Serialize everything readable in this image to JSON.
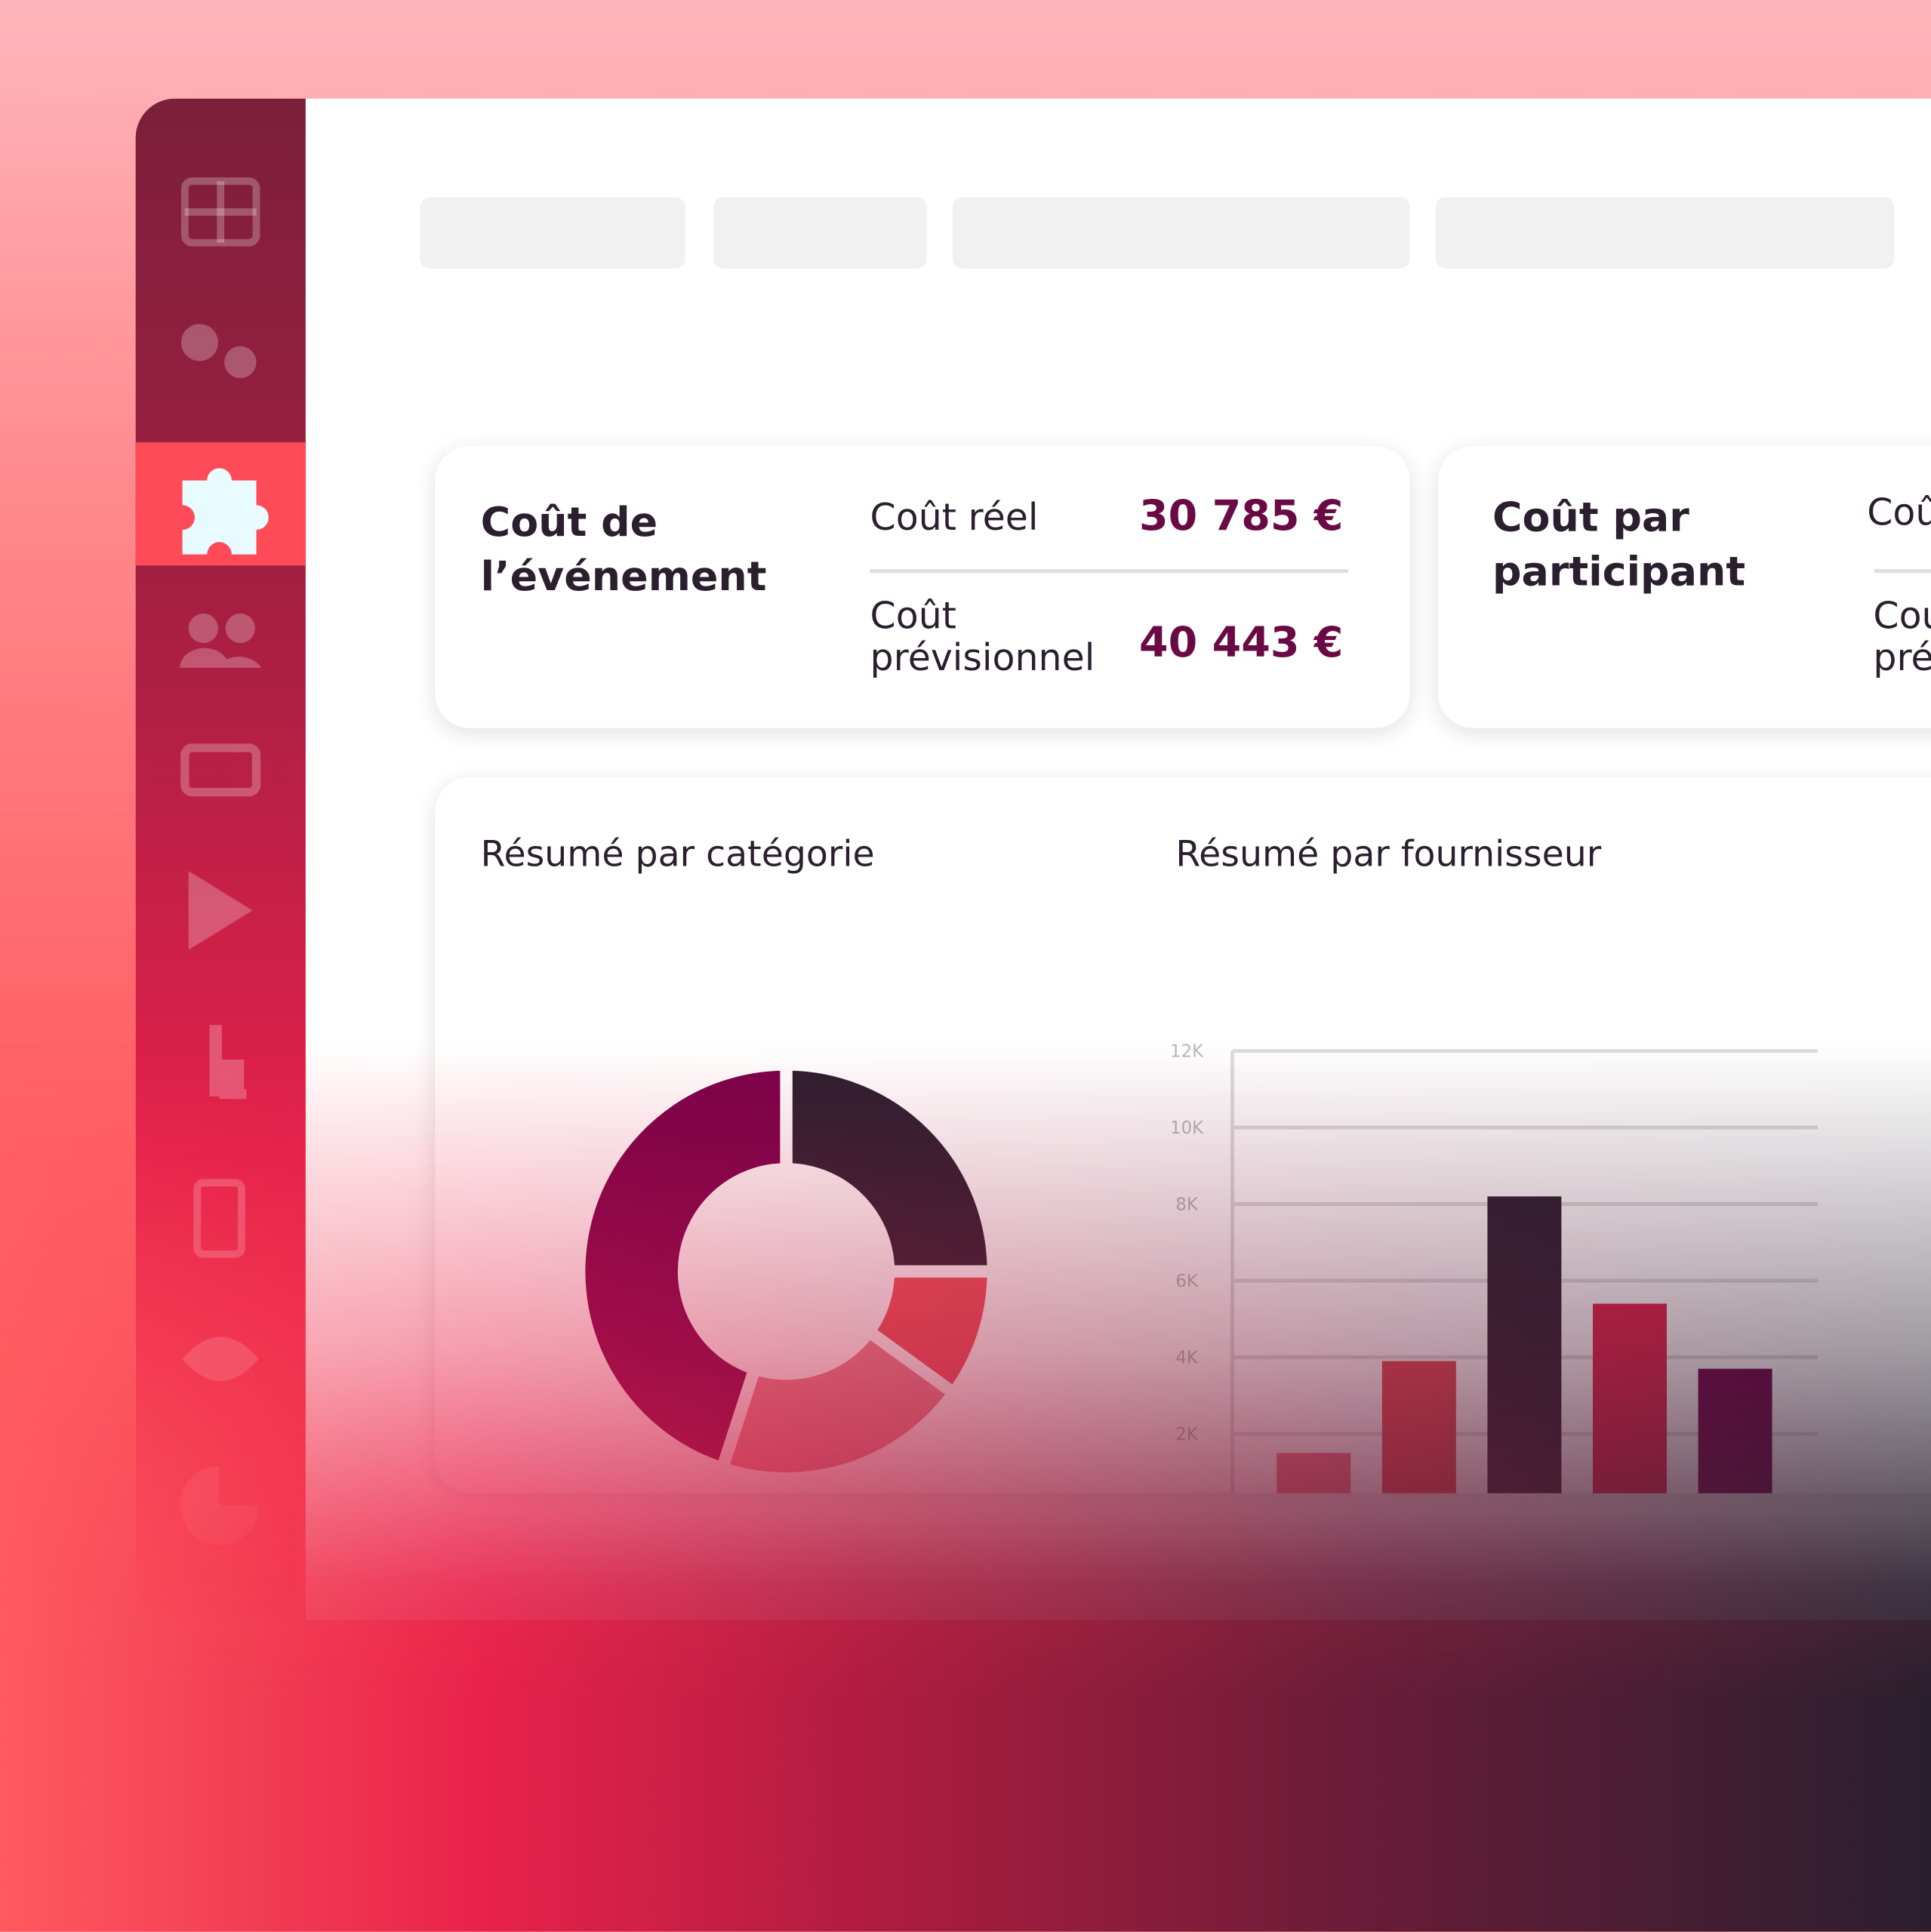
{
  "cards": [
    {
      "title": "Coût de l’événement",
      "rows": [
        {
          "label": "Coût réel",
          "value": "30 785 €"
        },
        {
          "label": "Coût prévisionnel",
          "value": "40 443 €"
        }
      ]
    },
    {
      "title": "Coût par participant",
      "rows": [
        {
          "label": "Coû"
        },
        {
          "label": "Cou pré"
        }
      ]
    }
  ],
  "chart_data": [
    {
      "type": "donut",
      "title": "Résumé par catégorie",
      "categories": [
        null,
        null,
        null,
        null
      ],
      "values": [
        25,
        10,
        20,
        45
      ],
      "colors": [
        "#2b1f2f",
        "#f0505a",
        "#e8848e",
        "#7a0049"
      ]
    },
    {
      "type": "bar",
      "title": "Résumé par fournisseur",
      "categories": [
        null,
        null,
        null,
        null,
        null
      ],
      "values": [
        1500,
        3900,
        8200,
        5400,
        3700
      ],
      "colors": [
        "#ec7482",
        "#e0454f",
        "#2b1f2f",
        "#e0204a",
        "#6e0048"
      ],
      "ylim": [
        0,
        12000
      ],
      "yticks": [
        {
          "value": 2000,
          "label": "2K"
        },
        {
          "value": 4000,
          "label": "4K"
        },
        {
          "value": 6000,
          "label": "6K"
        },
        {
          "value": 8000,
          "label": "8K"
        },
        {
          "value": 10000,
          "label": "10K"
        },
        {
          "value": 12000,
          "label": "12K"
        }
      ],
      "grid": true
    }
  ]
}
